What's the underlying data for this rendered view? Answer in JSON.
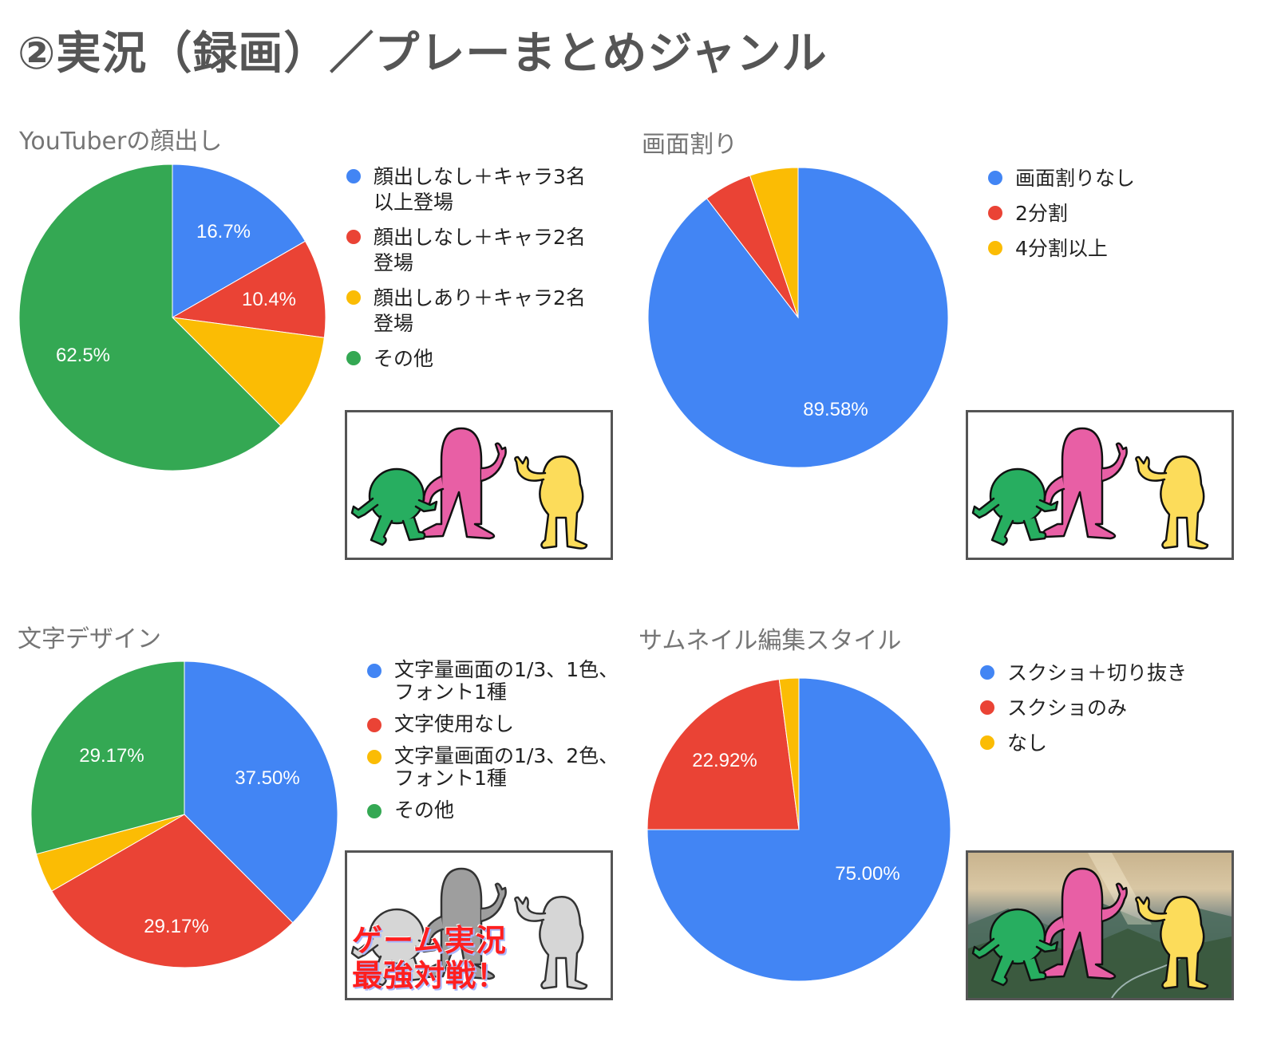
{
  "page": {
    "title": "②実況（録画）／プレーまとめジャンル"
  },
  "colors": {
    "blue": "#4285f4",
    "red": "#ea4335",
    "yellow": "#fbbc04",
    "green": "#34a853",
    "title_gray": "#757575",
    "heading_gray": "#555555"
  },
  "charts": [
    {
      "title": "YouTuberの顔出し",
      "legend": [
        {
          "label": "顔出しなし＋キャラ3名以上登場",
          "color": "#4285f4"
        },
        {
          "label": "顔出しなし＋キャラ2名登場",
          "color": "#ea4335"
        },
        {
          "label": "顔出しあり＋キャラ2名登場",
          "color": "#fbbc04"
        },
        {
          "label": "その他",
          "color": "#34a853"
        }
      ],
      "slice_labels": [
        "16.7%",
        "10.4%",
        "62.5%"
      ],
      "thumbnail": "characters-white-background"
    },
    {
      "title": "画面割り",
      "legend": [
        {
          "label": "画面割りなし",
          "color": "#4285f4"
        },
        {
          "label": "2分割",
          "color": "#ea4335"
        },
        {
          "label": "4分割以上",
          "color": "#fbbc04"
        }
      ],
      "slice_labels": [
        "89.58%"
      ],
      "thumbnail": "characters-white-background"
    },
    {
      "title": "文字デザイン",
      "legend": [
        {
          "label": "文字量画面の1/3、1色、フォント1種",
          "color": "#4285f4"
        },
        {
          "label": "文字使用なし",
          "color": "#ea4335"
        },
        {
          "label": "文字量画面の1/3、2色、フォント1種",
          "color": "#fbbc04"
        },
        {
          "label": "その他",
          "color": "#34a853"
        }
      ],
      "slice_labels": [
        "37.50%",
        "29.17%",
        "29.17%"
      ],
      "thumbnail": "grayscale-characters-with-text",
      "thumbnail_caption_line1": "ゲーム実況",
      "thumbnail_caption_line2": "最強対戦！"
    },
    {
      "title": "サムネイル編集スタイル",
      "legend": [
        {
          "label": "スクショ＋切り抜き",
          "color": "#4285f4"
        },
        {
          "label": "スクショのみ",
          "color": "#ea4335"
        },
        {
          "label": "なし",
          "color": "#fbbc04"
        }
      ],
      "slice_labels": [
        "75.00%",
        "22.92%"
      ],
      "thumbnail": "characters-over-mountain-photo"
    }
  ],
  "chart_data": [
    {
      "type": "pie",
      "title": "YouTuberの顔出し",
      "categories": [
        "顔出しなし＋キャラ3名以上登場",
        "顔出しなし＋キャラ2名登場",
        "顔出しあり＋キャラ2名登場",
        "その他"
      ],
      "values": [
        16.7,
        10.4,
        10.4,
        62.5
      ],
      "colors": [
        "#4285f4",
        "#ea4335",
        "#fbbc04",
        "#34a853"
      ],
      "legend_position": "right"
    },
    {
      "type": "pie",
      "title": "画面割り",
      "categories": [
        "画面割りなし",
        "2分割",
        "4分割以上"
      ],
      "values": [
        89.58,
        5.21,
        5.21
      ],
      "colors": [
        "#4285f4",
        "#ea4335",
        "#fbbc04"
      ],
      "legend_position": "right"
    },
    {
      "type": "pie",
      "title": "文字デザイン",
      "categories": [
        "文字量画面の1/3、1色、フォント1種",
        "文字使用なし",
        "文字量画面の1/3、2色、フォント1種",
        "その他"
      ],
      "values": [
        37.5,
        29.17,
        4.17,
        29.17
      ],
      "colors": [
        "#4285f4",
        "#ea4335",
        "#fbbc04",
        "#34a853"
      ],
      "legend_position": "right"
    },
    {
      "type": "pie",
      "title": "サムネイル編集スタイル",
      "categories": [
        "スクショ＋切り抜き",
        "スクショのみ",
        "なし"
      ],
      "values": [
        75.0,
        22.92,
        2.08
      ],
      "colors": [
        "#4285f4",
        "#ea4335",
        "#fbbc04"
      ],
      "legend_position": "right"
    }
  ]
}
